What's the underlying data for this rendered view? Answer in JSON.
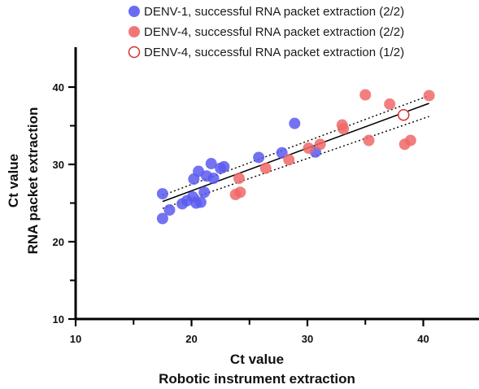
{
  "chart_data": {
    "type": "scatter",
    "xlabel_lines": [
      "Ct value",
      "Robotic instrument extraction"
    ],
    "ylabel_lines": [
      "Ct value",
      "RNA packet extraction"
    ],
    "xlim": [
      10,
      45
    ],
    "ylim": [
      10,
      45
    ],
    "x_ticks": [
      10,
      20,
      30,
      40
    ],
    "y_ticks": [
      10,
      20,
      30,
      40
    ],
    "grid": false,
    "legend_position": "top-center",
    "series": [
      {
        "name": "DENV-1, successful RNA packet extraction (2/2)",
        "color": "#5b5bf0",
        "marker": "filled-circle",
        "points": [
          [
            17.5,
            26.2
          ],
          [
            17.5,
            23.0
          ],
          [
            18.1,
            24.1
          ],
          [
            19.2,
            24.9
          ],
          [
            19.6,
            25.3
          ],
          [
            20.1,
            25.8
          ],
          [
            20.2,
            28.1
          ],
          [
            20.6,
            29.1
          ],
          [
            20.4,
            25.0
          ],
          [
            20.8,
            25.1
          ],
          [
            21.1,
            26.4
          ],
          [
            21.3,
            28.5
          ],
          [
            21.7,
            30.1
          ],
          [
            21.9,
            28.2
          ],
          [
            22.5,
            29.5
          ],
          [
            22.8,
            29.7
          ],
          [
            25.8,
            30.9
          ],
          [
            27.8,
            31.5
          ],
          [
            28.9,
            35.3
          ],
          [
            30.7,
            31.6
          ]
        ]
      },
      {
        "name": "DENV-4, successful RNA packet extraction (2/2)",
        "color": "#f06868",
        "marker": "filled-circle",
        "points": [
          [
            23.8,
            26.1
          ],
          [
            24.2,
            26.4
          ],
          [
            24.1,
            28.2
          ],
          [
            26.4,
            29.5
          ],
          [
            28.4,
            30.6
          ],
          [
            30.1,
            32.1
          ],
          [
            31.1,
            32.6
          ],
          [
            33.0,
            35.1
          ],
          [
            33.1,
            34.6
          ],
          [
            35.0,
            39.0
          ],
          [
            35.3,
            33.1
          ],
          [
            37.1,
            37.8
          ],
          [
            38.4,
            32.6
          ],
          [
            38.9,
            33.1
          ],
          [
            40.5,
            38.9
          ]
        ]
      },
      {
        "name": "DENV-4, successful RNA packet extraction (1/2)",
        "color": "#d93030",
        "marker": "open-circle",
        "points": [
          [
            38.3,
            36.4
          ]
        ]
      }
    ],
    "regression": {
      "line": [
        [
          17.5,
          25.2
        ],
        [
          40.5,
          37.9
        ]
      ],
      "ci_upper": [
        [
          17.5,
          26.0
        ],
        [
          40.5,
          38.9
        ]
      ],
      "ci_lower": [
        [
          17.5,
          24.3
        ],
        [
          40.5,
          36.2
        ]
      ]
    }
  }
}
